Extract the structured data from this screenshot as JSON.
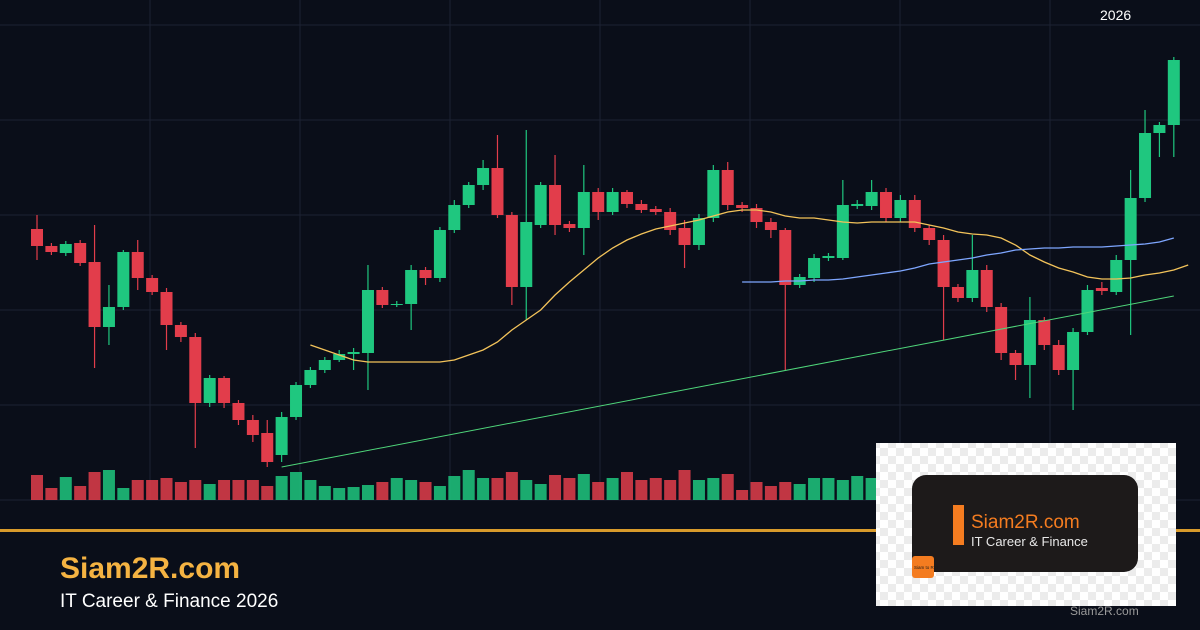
{
  "chart_data": {
    "type": "candlestick",
    "up_color": "#1fc77f",
    "down_color": "#e23d4b",
    "ylim": [
      0,
      500
    ],
    "y2lim": [
      0,
      500
    ],
    "candles": [
      [
        271,
        285,
        240,
        254
      ],
      [
        254,
        257,
        245,
        248
      ],
      [
        247,
        259,
        244,
        256
      ],
      [
        257,
        260,
        234,
        237
      ],
      [
        238,
        275,
        132,
        173
      ],
      [
        173,
        215,
        155,
        193
      ],
      [
        193,
        250,
        190,
        248
      ],
      [
        248,
        260,
        210,
        222
      ],
      [
        222,
        225,
        205,
        208
      ],
      [
        208,
        212,
        150,
        175
      ],
      [
        175,
        178,
        158,
        163
      ],
      [
        163,
        167,
        52,
        97
      ],
      [
        97,
        125,
        93,
        122
      ],
      [
        122,
        124,
        92,
        97
      ],
      [
        97,
        100,
        75,
        80
      ],
      [
        80,
        85,
        58,
        65
      ],
      [
        67,
        80,
        33,
        38
      ],
      [
        45,
        88,
        38,
        83
      ],
      [
        83,
        118,
        80,
        115
      ],
      [
        115,
        133,
        112,
        130
      ],
      [
        130,
        143,
        127,
        140
      ],
      [
        140,
        150,
        138,
        146
      ],
      [
        146,
        152,
        130,
        148
      ],
      [
        147,
        235,
        110,
        210
      ],
      [
        210,
        213,
        192,
        195
      ],
      [
        195,
        199,
        193,
        196
      ],
      [
        196,
        235,
        170,
        230
      ],
      [
        230,
        233,
        215,
        222
      ],
      [
        222,
        273,
        218,
        270
      ],
      [
        270,
        300,
        267,
        295
      ],
      [
        295,
        318,
        292,
        315
      ],
      [
        315,
        340,
        310,
        332
      ],
      [
        332,
        365,
        282,
        285
      ],
      [
        285,
        288,
        195,
        213
      ],
      [
        213,
        370,
        180,
        278
      ],
      [
        275,
        318,
        272,
        315
      ],
      [
        315,
        345,
        265,
        275
      ],
      [
        276,
        279,
        268,
        272
      ],
      [
        272,
        335,
        245,
        308
      ],
      [
        308,
        312,
        280,
        288
      ],
      [
        288,
        312,
        285,
        308
      ],
      [
        308,
        310,
        292,
        296
      ],
      [
        296,
        300,
        287,
        290
      ],
      [
        291,
        294,
        285,
        288
      ],
      [
        288,
        292,
        265,
        270
      ],
      [
        272,
        280,
        232,
        255
      ],
      [
        255,
        286,
        250,
        282
      ],
      [
        282,
        335,
        278,
        330
      ],
      [
        330,
        338,
        290,
        295
      ],
      [
        295,
        298,
        288,
        292
      ],
      [
        292,
        296,
        272,
        278
      ],
      [
        278,
        282,
        262,
        270
      ],
      [
        270,
        272,
        130,
        215
      ],
      [
        215,
        226,
        212,
        223
      ],
      [
        222,
        246,
        218,
        242
      ],
      [
        242,
        247,
        239,
        244
      ],
      [
        242,
        320,
        240,
        295
      ],
      [
        294,
        300,
        291,
        296
      ],
      [
        294,
        320,
        290,
        308
      ],
      [
        308,
        312,
        278,
        282
      ],
      [
        282,
        305,
        278,
        300
      ],
      [
        300,
        305,
        268,
        272
      ],
      [
        272,
        275,
        255,
        260
      ],
      [
        260,
        265,
        160,
        213
      ],
      [
        213,
        216,
        198,
        202
      ],
      [
        202,
        265,
        198,
        230
      ],
      [
        230,
        235,
        188,
        193
      ],
      [
        193,
        197,
        140,
        147
      ],
      [
        147,
        150,
        120,
        135
      ],
      [
        135,
        203,
        102,
        180
      ],
      [
        180,
        183,
        150,
        155
      ],
      [
        155,
        160,
        125,
        130
      ],
      [
        130,
        172,
        90,
        168
      ],
      [
        168,
        215,
        165,
        210
      ],
      [
        212,
        218,
        205,
        209
      ],
      [
        208,
        245,
        205,
        240
      ],
      [
        240,
        330,
        165,
        302
      ],
      [
        302,
        390,
        298,
        367
      ],
      [
        367,
        378,
        343,
        375
      ],
      [
        375,
        443,
        343,
        440
      ]
    ],
    "volumes": [
      25,
      12,
      23,
      14,
      28,
      30,
      12,
      20,
      20,
      22,
      18,
      20,
      16,
      20,
      20,
      20,
      14,
      24,
      28,
      20,
      14,
      12,
      13,
      15,
      18,
      22,
      20,
      18,
      14,
      24,
      30,
      22,
      22,
      28,
      20,
      16,
      25,
      22,
      26,
      18,
      22,
      28,
      20,
      22,
      20,
      30,
      20,
      22,
      26,
      10,
      18,
      14,
      18,
      16,
      22,
      22,
      20,
      24,
      22,
      null,
      null,
      null,
      null,
      null,
      null,
      null,
      null,
      null,
      null,
      null,
      null,
      null,
      null,
      null,
      null,
      null,
      null,
      null,
      null,
      null
    ],
    "moving_averages": [
      {
        "color": "#f3c35a",
        "values": [
          null,
          null,
          null,
          null,
          null,
          null,
          null,
          null,
          null,
          null,
          null,
          null,
          null,
          null,
          null,
          null,
          null,
          null,
          null,
          155,
          150,
          145,
          140,
          138,
          138,
          138,
          138,
          138,
          138,
          140,
          145,
          150,
          158,
          170,
          180,
          190,
          205,
          218,
          230,
          242,
          252,
          260,
          266,
          271,
          274,
          277,
          280,
          284,
          288,
          290,
          290,
          288,
          284,
          282,
          282,
          280,
          278,
          277,
          278,
          278,
          278,
          278,
          275,
          272,
          268,
          266,
          265,
          262,
          255,
          245,
          238,
          232,
          228,
          223,
          221,
          221,
          222,
          225,
          227,
          230,
          235
        ]
      },
      {
        "color": "#7ea6ff",
        "values": [
          null,
          null,
          null,
          null,
          null,
          null,
          null,
          null,
          null,
          null,
          null,
          null,
          null,
          null,
          null,
          null,
          null,
          null,
          null,
          null,
          null,
          null,
          null,
          null,
          null,
          null,
          null,
          null,
          null,
          null,
          null,
          null,
          null,
          null,
          null,
          null,
          null,
          null,
          null,
          null,
          null,
          null,
          null,
          null,
          null,
          null,
          null,
          null,
          null,
          218,
          218,
          218,
          219,
          219,
          220,
          220,
          221,
          223,
          225,
          227,
          229,
          232,
          236,
          238,
          240,
          242,
          245,
          247,
          250,
          251,
          252,
          252,
          253,
          253,
          253,
          254,
          255,
          256,
          258,
          262
        ]
      }
    ],
    "trend_line": {
      "color": "#4fd67a",
      "x": [
        17,
        79
      ],
      "values": [
        33,
        204
      ]
    },
    "year_label": "2026"
  },
  "branding": {
    "title": "Siam2R.com",
    "subtitle": "IT Career & Finance 2026"
  },
  "card": {
    "title": "Siam2R.com",
    "subtitle": "IT Career & Finance",
    "logo_text": "Siam to Rich",
    "watermark": "Siam2R.com"
  }
}
